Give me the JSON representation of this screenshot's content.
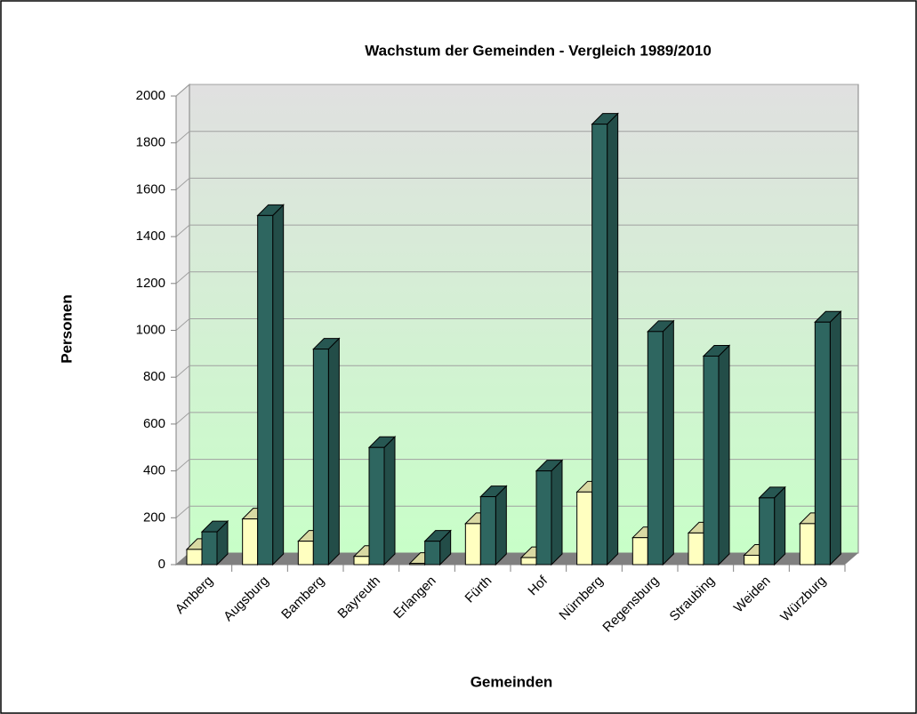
{
  "chart_data": {
    "type": "bar3d",
    "title": "Wachstum der Gemeinden - Vergleich 1989/2010",
    "x_label": "Gemeinden",
    "y_label": "Personen",
    "categories": [
      "Amberg",
      "Augsburg",
      "Bamberg",
      "Bayreuth",
      "Erlangen",
      "Fürth",
      "Hof",
      "Nürnberg",
      "Regensburg",
      "Straubing",
      "Weiden",
      "Würzburg"
    ],
    "series": [
      {
        "color": "#ffffc0",
        "values": [
          65,
          195,
          100,
          35,
          5,
          175,
          30,
          310,
          115,
          135,
          40,
          175
        ]
      },
      {
        "color": "#2e6660",
        "values": [
          140,
          1490,
          920,
          500,
          100,
          290,
          400,
          1880,
          995,
          890,
          285,
          1035
        ]
      }
    ],
    "ylim": [
      0,
      2000
    ],
    "yticks": [
      0,
      200,
      400,
      600,
      800,
      1000,
      1200,
      1400,
      1600,
      1800,
      2000
    ],
    "grid": true
  }
}
